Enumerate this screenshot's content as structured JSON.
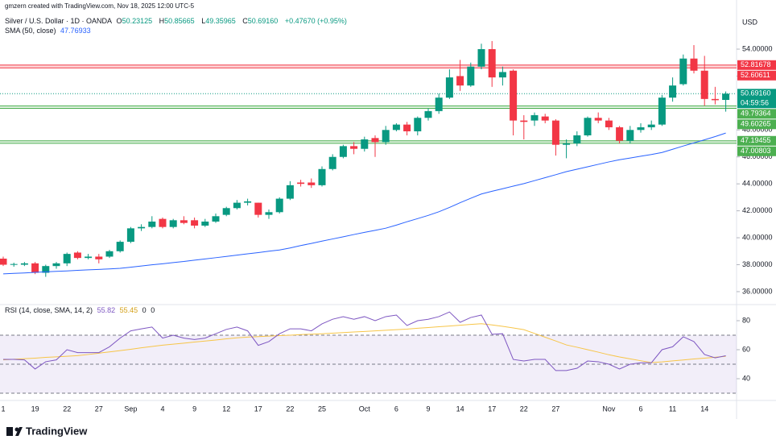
{
  "chart_data": [
    {
      "type": "candlestick",
      "credit": "gmzern created with TradingView.com, Nov 18, 2025 12:00 UTC-5",
      "title": "Silver / U.S. Dollar · 1D · OANDA",
      "ohlc_letters": [
        "O",
        "H",
        "L",
        "C"
      ],
      "last_close_label": "50.69160",
      "change": "+0.47670 (+0.95%)",
      "countdown": "04:59:56",
      "currency": "USD",
      "brand": "TradingView",
      "up_color": "#089981",
      "down_color": "#f23645",
      "categories": [
        "1",
        null,
        null,
        "19",
        null,
        null,
        "22",
        null,
        null,
        "27",
        null,
        null,
        "Sep",
        null,
        null,
        "4",
        null,
        null,
        "9",
        null,
        null,
        "12",
        null,
        null,
        "17",
        null,
        null,
        "22",
        null,
        null,
        "25",
        null,
        null,
        null,
        "Oct",
        null,
        null,
        "6",
        null,
        null,
        "9",
        null,
        null,
        "14",
        null,
        null,
        "17",
        null,
        null,
        "22",
        null,
        null,
        "27",
        null,
        null,
        null,
        null,
        "Nov",
        null,
        null,
        "6",
        null,
        null,
        "11",
        null,
        null,
        "14",
        null,
        null
      ],
      "open": [
        38.45,
        38.0,
        38.0,
        38.1,
        37.4,
        37.9,
        38.1,
        38.9,
        38.5,
        38.6,
        38.6,
        39.0,
        39.7,
        40.7,
        40.8,
        41.4,
        40.8,
        41.3,
        41.3,
        40.9,
        41.2,
        41.7,
        42.2,
        42.6,
        42.6,
        41.7,
        41.9,
        42.9,
        44.1,
        44.1,
        43.9,
        45.1,
        46.0,
        46.8,
        46.6,
        47.4,
        47.1,
        48.0,
        48.4,
        47.9,
        48.9,
        49.4,
        50.4,
        52.0,
        51.3,
        52.7,
        54.0,
        51.9,
        52.4,
        48.7,
        48.7,
        49.0,
        48.7,
        46.9,
        47.0,
        47.6,
        48.9,
        48.7,
        48.2,
        47.2,
        48.0,
        48.2,
        48.4,
        50.4,
        51.4,
        53.3,
        52.4,
        50.3,
        50.23125
      ],
      "high": [
        38.6,
        38.15,
        38.2,
        38.2,
        38.0,
        38.2,
        38.9,
        39.0,
        38.8,
        38.8,
        39.1,
        39.8,
        40.8,
        41.0,
        41.6,
        41.5,
        41.4,
        41.6,
        41.5,
        41.4,
        41.8,
        42.3,
        42.8,
        42.9,
        42.6,
        42.1,
        43.0,
        44.2,
        44.3,
        44.4,
        45.3,
        46.2,
        46.9,
        47.1,
        47.5,
        47.6,
        48.3,
        48.5,
        48.6,
        49.0,
        49.6,
        50.7,
        52.5,
        53.2,
        53.0,
        54.4,
        54.6,
        52.7,
        52.5,
        49.1,
        49.3,
        49.2,
        48.8,
        47.3,
        47.9,
        49.0,
        49.3,
        48.9,
        48.3,
        48.3,
        48.5,
        48.7,
        50.6,
        51.9,
        53.6,
        54.3,
        53.5,
        51.2,
        50.85665
      ],
      "low": [
        37.9,
        37.85,
        37.9,
        37.3,
        37.1,
        37.7,
        37.9,
        38.4,
        38.4,
        38.1,
        38.5,
        38.9,
        39.6,
        40.5,
        40.7,
        40.7,
        40.7,
        41.0,
        40.7,
        40.8,
        41.1,
        41.6,
        42.1,
        42.4,
        41.5,
        41.4,
        41.8,
        42.8,
        43.8,
        43.7,
        43.8,
        45.0,
        45.9,
        46.2,
        46.4,
        46.0,
        46.9,
        47.9,
        47.6,
        47.6,
        48.7,
        49.2,
        50.3,
        50.9,
        51.2,
        52.5,
        51.2,
        51.3,
        47.6,
        47.3,
        48.3,
        48.5,
        46.1,
        45.9,
        46.8,
        47.5,
        48.5,
        48.0,
        47.0,
        47.0,
        47.8,
        48.0,
        48.3,
        50.1,
        51.3,
        52.2,
        49.8,
        49.9,
        49.35965
      ],
      "close": [
        38.0,
        38.05,
        38.1,
        37.4,
        37.9,
        38.1,
        38.8,
        38.5,
        38.6,
        38.4,
        39.0,
        39.7,
        40.7,
        40.8,
        41.2,
        40.8,
        41.3,
        41.1,
        40.9,
        41.2,
        41.6,
        42.2,
        42.6,
        42.7,
        41.7,
        41.9,
        42.9,
        43.9,
        44.0,
        43.9,
        45.1,
        46.0,
        46.8,
        46.6,
        47.3,
        47.1,
        48.0,
        48.4,
        47.9,
        48.9,
        49.4,
        50.4,
        51.9,
        51.3,
        52.7,
        54.0,
        51.9,
        52.3,
        48.7,
        48.6,
        49.1,
        48.7,
        46.9,
        47.0,
        47.6,
        48.9,
        48.7,
        48.2,
        47.2,
        48.0,
        48.2,
        48.4,
        50.4,
        51.3,
        53.3,
        52.4,
        50.3,
        50.21,
        50.6916
      ],
      "series": [
        {
          "name": "SMA (50, close)",
          "color": "#2962ff",
          "values": [
            37.32,
            37.36,
            37.39,
            37.43,
            37.47,
            37.51,
            37.54,
            37.58,
            37.62,
            37.65,
            37.69,
            37.73,
            37.81,
            37.9,
            37.99,
            38.07,
            38.16,
            38.24,
            38.34,
            38.43,
            38.52,
            38.61,
            38.71,
            38.81,
            38.9,
            39.0,
            39.09,
            39.24,
            39.42,
            39.58,
            39.75,
            39.91,
            40.07,
            40.24,
            40.4,
            40.55,
            40.71,
            40.94,
            41.19,
            41.42,
            41.66,
            41.93,
            42.25,
            42.6,
            42.93,
            43.25,
            43.45,
            43.64,
            43.83,
            44.02,
            44.24,
            44.46,
            44.68,
            44.91,
            45.09,
            45.27,
            45.45,
            45.63,
            45.79,
            45.92,
            46.05,
            46.18,
            46.33,
            46.57,
            46.81,
            47.04,
            47.27,
            47.51,
            47.76933
          ]
        }
      ],
      "zones": [
        {
          "color": "#f23645",
          "values": [
            52.81678,
            52.60611
          ]
        },
        {
          "color": "#4caf50",
          "values": [
            49.79364,
            49.60265
          ]
        },
        {
          "color": "#4caf50",
          "values": [
            47.19455,
            47.00803
          ]
        }
      ],
      "ylim": [
        35.04,
        56.75
      ],
      "yticks": [
        {
          "value": 36,
          "label": "36.00000"
        },
        {
          "value": 38,
          "label": "38.00000"
        },
        {
          "value": 40,
          "label": "40.00000"
        },
        {
          "value": 42,
          "label": "42.00000"
        },
        {
          "value": 44,
          "label": "44.00000"
        },
        {
          "value": 46,
          "label": "46.00000"
        },
        {
          "value": 48,
          "label": "48.00000"
        },
        {
          "value": 52,
          "label": "52.00000"
        },
        {
          "value": 54,
          "label": "54.00000"
        }
      ],
      "grid": false
    },
    {
      "type": "line",
      "title": "RSI (14, close, SMA, 14, 2)",
      "extra": [
        0,
        0
      ],
      "series": [
        {
          "name": "RSI",
          "color": "#7e57c2",
          "values": [
            53.3,
            53.3,
            53.0,
            46.7,
            51.7,
            53.0,
            60.0,
            58.0,
            58.0,
            58.0,
            62.0,
            68.0,
            73.0,
            74.4,
            75.6,
            68.0,
            70.0,
            68.0,
            67.0,
            68.0,
            71.0,
            74.0,
            75.6,
            73.0,
            63.0,
            65.6,
            71.0,
            74.4,
            74.4,
            73.0,
            77.8,
            81.0,
            82.8,
            81.0,
            82.8,
            80.0,
            82.8,
            83.9,
            76.7,
            80.0,
            81.0,
            82.8,
            86.0,
            78.9,
            82.2,
            83.9,
            70.6,
            71.0,
            53.3,
            52.2,
            53.3,
            53.3,
            45.6,
            45.6,
            47.2,
            52.2,
            51.7,
            50.0,
            46.7,
            50.0,
            51.0,
            51.0,
            60.0,
            62.0,
            68.9,
            65.6,
            56.7,
            54.4,
            55.82
          ]
        },
        {
          "name": "RSI-based MA",
          "color": "#f7c548",
          "values": [
            53.0,
            53.4,
            53.8,
            54.2,
            54.7,
            55.1,
            55.5,
            55.9,
            56.7,
            57.6,
            58.5,
            59.4,
            60.3,
            61.3,
            62.2,
            63.1,
            63.8,
            64.5,
            65.3,
            66.0,
            66.7,
            67.5,
            68.2,
            68.7,
            69.0,
            69.4,
            69.7,
            70.0,
            70.4,
            70.7,
            71.0,
            71.4,
            71.8,
            72.2,
            72.6,
            73.0,
            73.4,
            73.8,
            74.2,
            74.8,
            75.3,
            75.8,
            76.3,
            76.9,
            77.4,
            77.9,
            77.1,
            76.1,
            75.0,
            73.8,
            71.2,
            68.6,
            66.0,
            63.3,
            61.7,
            60.0,
            58.3,
            56.5,
            55.0,
            53.7,
            52.4,
            51.1,
            51.6,
            52.3,
            52.9,
            53.6,
            54.2,
            54.8,
            55.45
          ]
        }
      ],
      "bands": [
        70,
        50,
        30
      ],
      "ylim": [
        25,
        90
      ],
      "yticks": [
        80,
        60,
        40
      ]
    }
  ]
}
